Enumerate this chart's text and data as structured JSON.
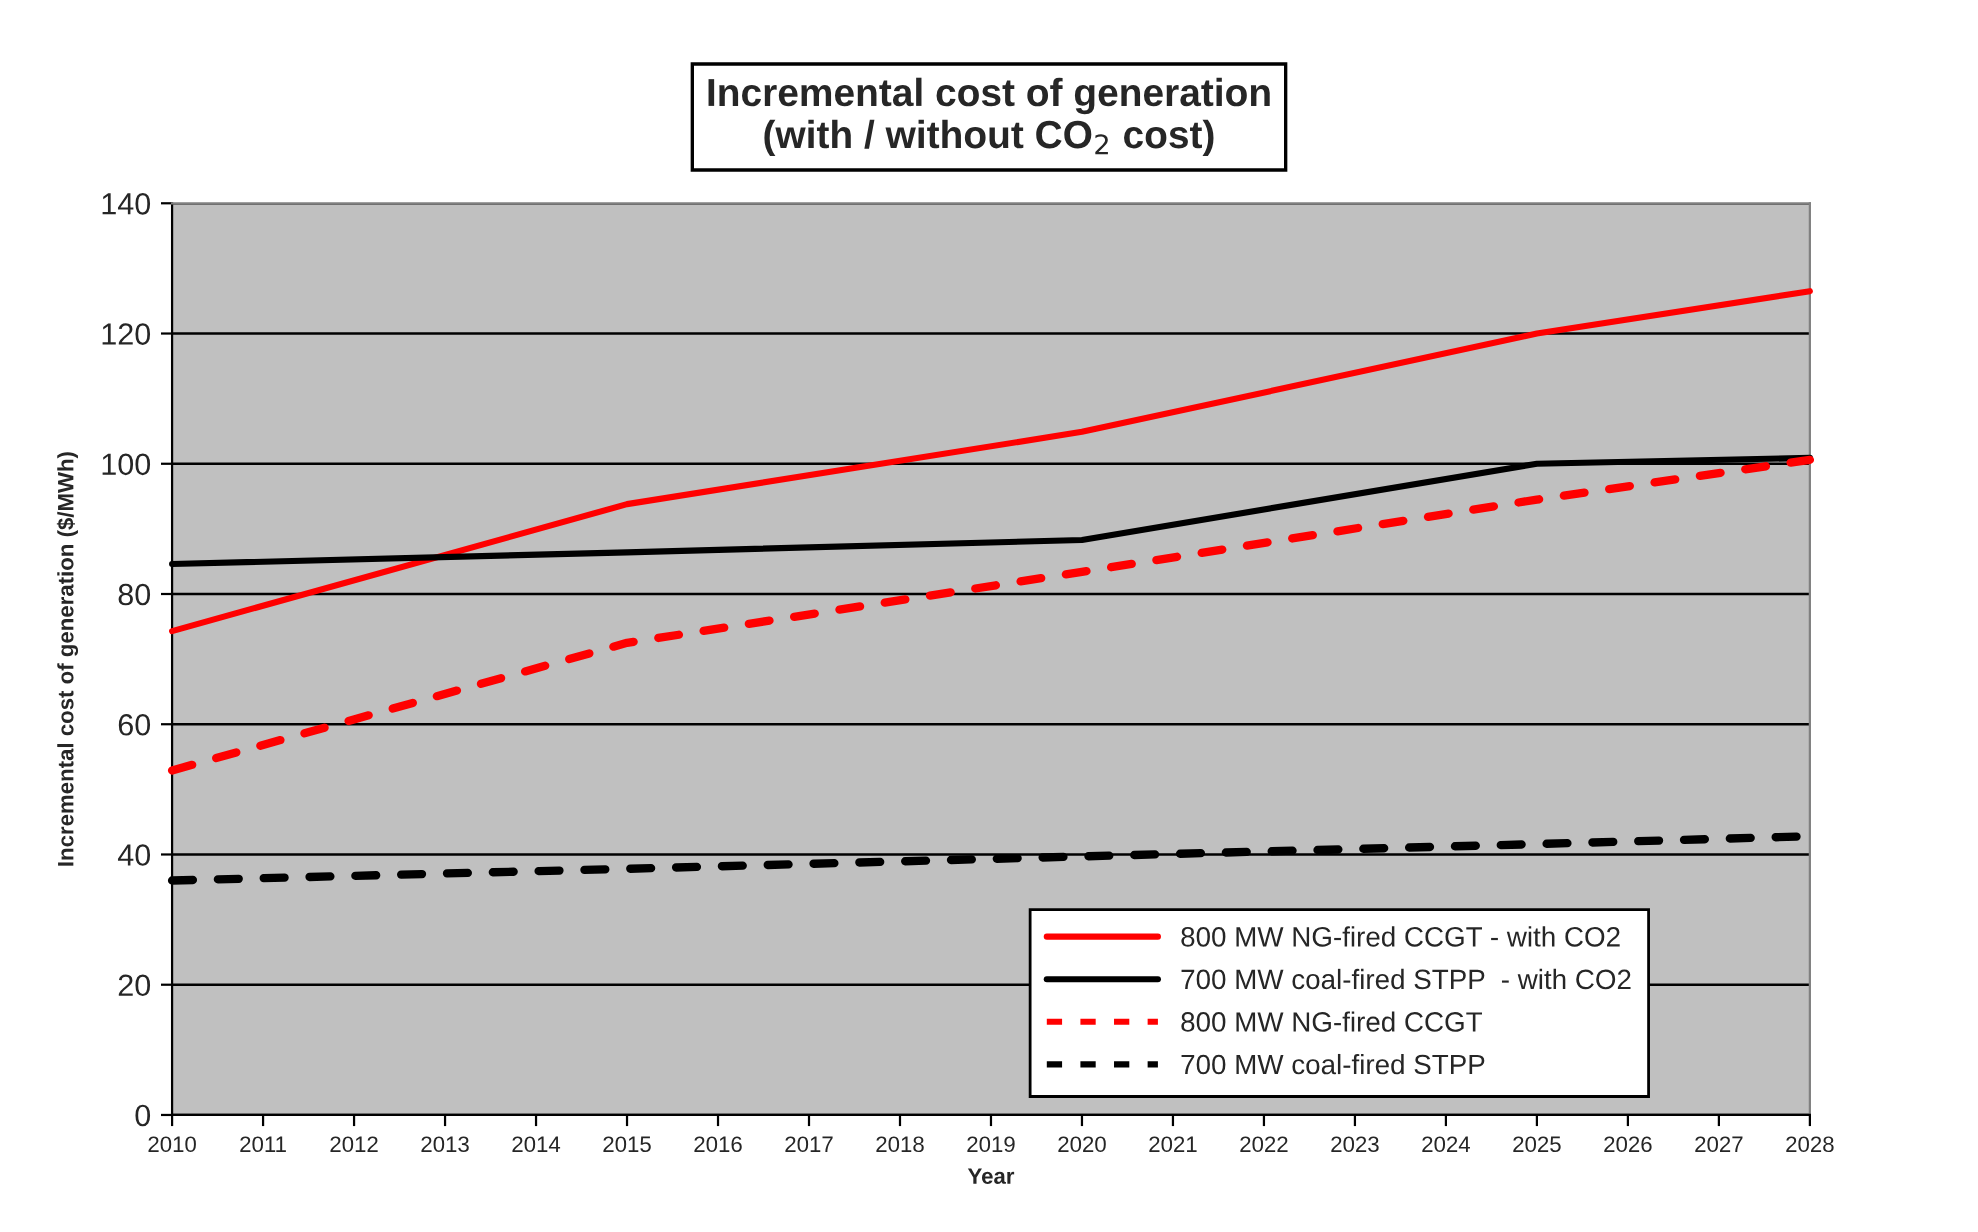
{
  "chart_data": {
    "type": "line",
    "title": "Incremental cost of generation\n(with / without CO$_{2}$ cost)",
    "xlabel": "Year",
    "ylabel": "Incremental cost of generation ($/MWh)",
    "x": [
      2010,
      2015,
      2020,
      2025,
      2028
    ],
    "series": [
      {
        "name": "800 MW NG-fired CCGT - with CO2",
        "color": "#ff0000",
        "line_style": "solid",
        "values": [
          74.3,
          93.8,
          104.9,
          120.0,
          126.5
        ]
      },
      {
        "name": "700 MW coal-fired STPP  - with CO2",
        "color": "#000000",
        "line_style": "solid",
        "values": [
          84.6,
          86.4,
          88.3,
          100.0,
          100.9
        ]
      },
      {
        "name": "800 MW NG-fired CCGT",
        "color": "#ff0000",
        "line_style": "dashed",
        "values": [
          52.9,
          72.5,
          83.4,
          94.5,
          100.6
        ]
      },
      {
        "name": "700 MW coal-fired STPP",
        "color": "#000000",
        "line_style": "dashed",
        "values": [
          36.0,
          37.8,
          39.7,
          41.6,
          42.8
        ]
      }
    ],
    "xlim": [
      2010,
      2028
    ],
    "xticks": [
      2010,
      2011,
      2012,
      2013,
      2014,
      2015,
      2016,
      2017,
      2018,
      2019,
      2020,
      2021,
      2022,
      2023,
      2024,
      2025,
      2026,
      2027,
      2028
    ],
    "ylim": [
      0,
      140
    ],
    "yticks": [
      0,
      20,
      40,
      60,
      80,
      100,
      120,
      140
    ],
    "grid": "y",
    "legend": "bottom right",
    "marker": "none"
  }
}
